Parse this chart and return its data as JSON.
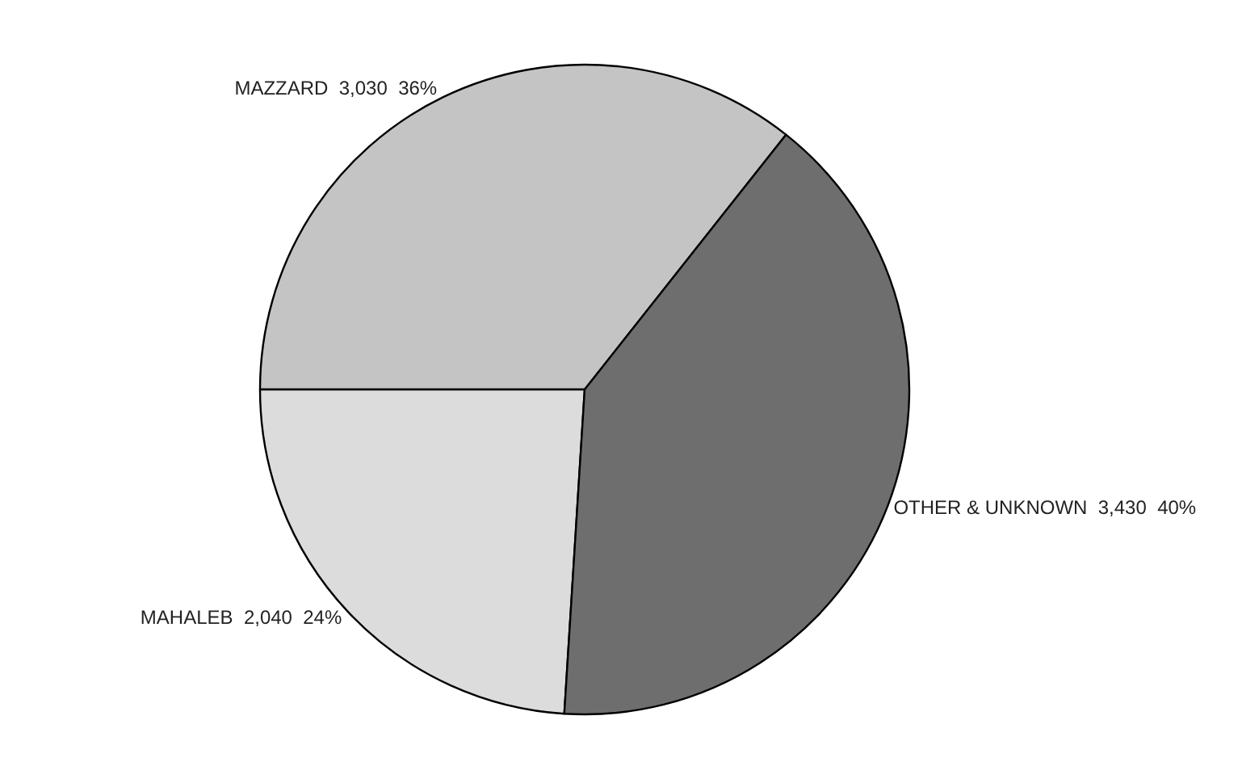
{
  "chart_data": {
    "type": "pie",
    "categories": [
      "MAZZARD",
      "MAHALEB",
      "OTHER & UNKNOWN"
    ],
    "values": [
      3030,
      2040,
      3430
    ],
    "value_labels": [
      "3,030  36%",
      "2,040  24%",
      "3,430  40%"
    ],
    "colors": [
      "#c4c4c4",
      "#dcdcdc",
      "#6e6e6e"
    ],
    "legend": false
  }
}
